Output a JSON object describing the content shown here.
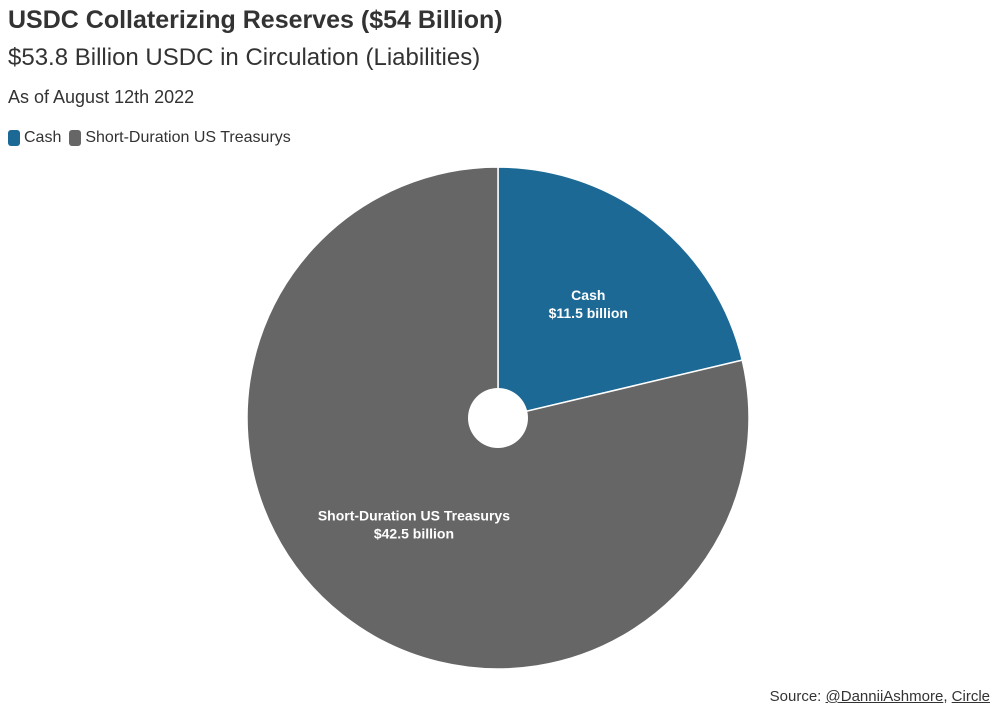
{
  "chart_data": {
    "type": "pie",
    "title": "USDC Collaterizing Reserves ($54 Billion)",
    "subtitle": "$53.8 Billion USDC in Circulation (Liabilities)",
    "note": "As of August 12th 2022",
    "legend": [
      "Cash",
      "Short-Duration US Treasurys"
    ],
    "legend_position": "top-left",
    "categories": [
      "Cash",
      "Short-Duration US Treasurys"
    ],
    "values": [
      11.5,
      42.5
    ],
    "data_labels": [
      {
        "name": "Cash",
        "value": "$11.5 billion"
      },
      {
        "name": "Short-Duration US Treasurys",
        "value": "$42.5 billion"
      }
    ],
    "colors": [
      "#1d6996",
      "#666666"
    ]
  },
  "source": {
    "prefix": "Source: ",
    "links": [
      "@DanniiAshmore",
      "Circle"
    ],
    "separator": ", "
  }
}
